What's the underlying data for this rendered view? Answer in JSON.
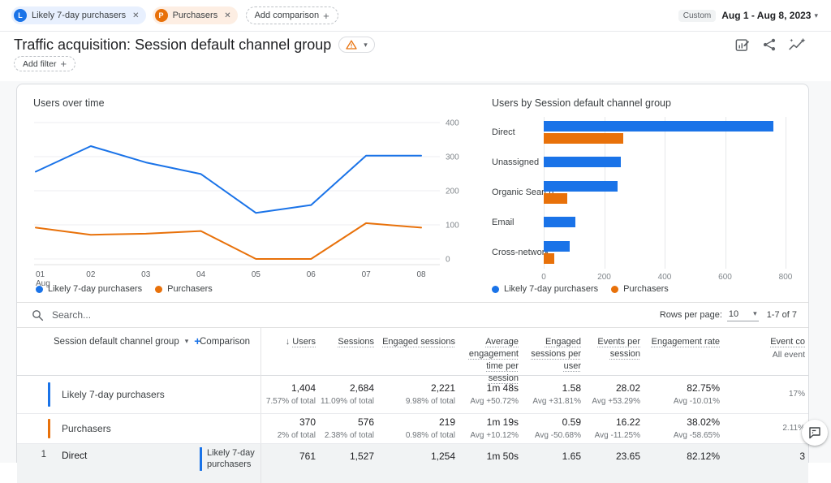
{
  "header": {
    "comparisons": [
      {
        "letter": "L",
        "label": "Likely 7-day purchasers",
        "color": "#1a73e8",
        "bg": "#e8f0fe"
      },
      {
        "letter": "P",
        "label": "Purchasers",
        "color": "#e8710a",
        "bg": "#fdeee3"
      }
    ],
    "add_comparison_label": "Add comparison",
    "date_preset": "Custom",
    "date_range": "Aug 1 - Aug 8, 2023",
    "title": "Traffic acquisition: Session default channel group",
    "add_filter_label": "Add filter",
    "action_icons": [
      "edit-report-icon",
      "share-icon",
      "insights-icon"
    ],
    "title_icons": [
      "warning-icon",
      "chevron-down-icon"
    ]
  },
  "chart_data": [
    {
      "type": "line",
      "title": "Users over time",
      "x": [
        "01 Aug",
        "02",
        "03",
        "04",
        "05",
        "06",
        "07",
        "08"
      ],
      "series": [
        {
          "name": "Likely 7-day purchasers",
          "color": "#1a73e8",
          "values": [
            256,
            331,
            283,
            249,
            135,
            158,
            303,
            303
          ]
        },
        {
          "name": "Purchasers",
          "color": "#e8710a",
          "values": [
            92,
            71,
            74,
            82,
            0,
            0,
            105,
            92
          ]
        }
      ],
      "ylim": [
        0,
        400
      ],
      "y_ticks": [
        400,
        300,
        200,
        100,
        0
      ],
      "grid": "horizontal",
      "legend_position": "bottom-left"
    },
    {
      "type": "bar",
      "orientation": "horizontal",
      "title": "Users by Session default channel group",
      "categories": [
        "Direct",
        "Unassigned",
        "Organic Search",
        "Email",
        "Cross-network"
      ],
      "series": [
        {
          "name": "Likely 7-day purchasers",
          "color": "#1a73e8",
          "values": [
            760,
            255,
            245,
            105,
            85
          ]
        },
        {
          "name": "Purchasers",
          "color": "#e8710a",
          "values": [
            262,
            null,
            77,
            null,
            35
          ]
        }
      ],
      "xlim": [
        0,
        800
      ],
      "x_ticks": [
        0,
        200,
        400,
        600,
        800
      ],
      "grid": "vertical",
      "legend_position": "bottom-left"
    }
  ],
  "table": {
    "search_placeholder": "Search...",
    "rows_per_page_label": "Rows per page:",
    "rows_per_page_value": "10",
    "pagination": "1-7 of 7",
    "dimension_header": "Session default channel group",
    "comparison_header": "Comparison",
    "metric_headers": [
      {
        "label": "Users",
        "sorted": true
      },
      {
        "label": "Sessions"
      },
      {
        "label": "Engaged sessions"
      },
      {
        "label": "Average engagement time per session"
      },
      {
        "label": "Engaged sessions per user"
      },
      {
        "label": "Events per session"
      },
      {
        "label": "Engagement rate"
      },
      {
        "label": "Event co",
        "sub": "All event"
      }
    ],
    "summary_rows": [
      {
        "label": "Likely 7-day purchasers",
        "color": "#1a73e8",
        "metrics": [
          {
            "v": "1,404",
            "s": "7.57% of total"
          },
          {
            "v": "2,684",
            "s": "11.09% of total"
          },
          {
            "v": "2,221",
            "s": "9.98% of total"
          },
          {
            "v": "1m 48s",
            "s": "Avg +50.72%"
          },
          {
            "v": "1.58",
            "s": "Avg +31.81%"
          },
          {
            "v": "28.02",
            "s": "Avg +53.29%"
          },
          {
            "v": "82.75%",
            "s": "Avg -10.01%"
          },
          {
            "v": "",
            "s": "17%"
          }
        ]
      },
      {
        "label": "Purchasers",
        "color": "#e8710a",
        "metrics": [
          {
            "v": "370",
            "s": "2% of total"
          },
          {
            "v": "576",
            "s": "2.38% of total"
          },
          {
            "v": "219",
            "s": "0.98% of total"
          },
          {
            "v": "1m 19s",
            "s": "Avg +10.12%"
          },
          {
            "v": "0.59",
            "s": "Avg -50.68%"
          },
          {
            "v": "16.22",
            "s": "Avg -11.25%"
          },
          {
            "v": "38.02%",
            "s": "Avg -58.65%"
          },
          {
            "v": "",
            "s": "2.11%"
          }
        ]
      }
    ],
    "data_rows": [
      {
        "num": "1",
        "channel": "Direct",
        "comparison": "Likely 7-day purchasers",
        "comparison_color": "#1a73e8",
        "values": [
          "761",
          "1,527",
          "1,254",
          "1m 50s",
          "1.65",
          "23.65",
          "82.12%",
          "3"
        ]
      }
    ]
  },
  "feedback_button": {
    "icon": "feedback-icon"
  }
}
